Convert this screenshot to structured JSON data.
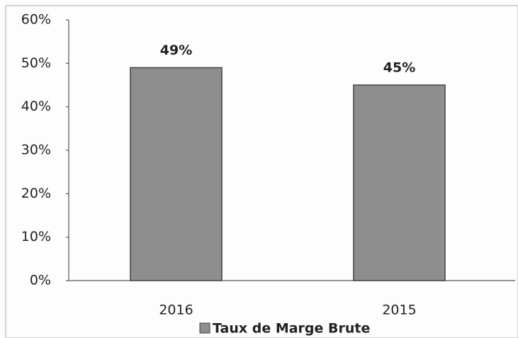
{
  "chart_data": {
    "type": "bar",
    "categories": [
      "2016",
      "2015"
    ],
    "series": [
      {
        "name": "Taux de Marge Brute",
        "color": "#8e8e8e",
        "values": [
          49,
          45
        ],
        "value_labels": [
          "49%",
          "45%"
        ]
      }
    ],
    "ylim": [
      0,
      60
    ],
    "yticks": [
      {
        "value": 0,
        "label": "0%"
      },
      {
        "value": 10,
        "label": "10%"
      },
      {
        "value": 20,
        "label": "20%"
      },
      {
        "value": 30,
        "label": "30%"
      },
      {
        "value": 40,
        "label": "40%"
      },
      {
        "value": 50,
        "label": "50%"
      },
      {
        "value": 60,
        "label": "60%"
      }
    ],
    "grid": false,
    "legend": "bottom"
  }
}
